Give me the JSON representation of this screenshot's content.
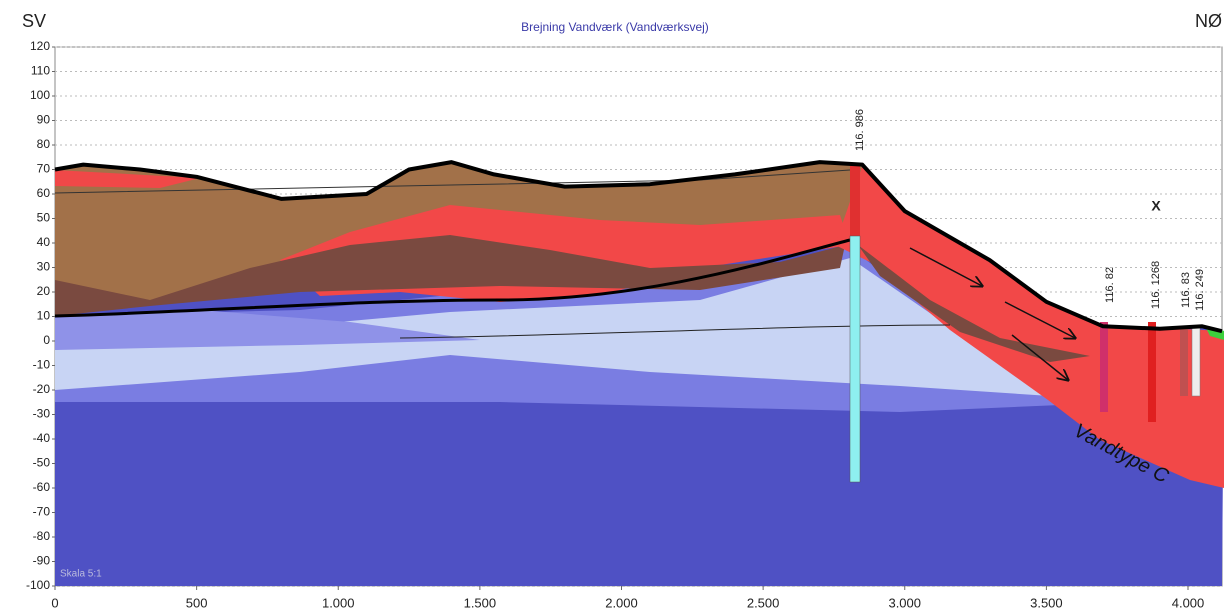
{
  "chart_data": {
    "type": "line",
    "title": "Brejning Vandværk (Vandværksvej)",
    "left_label": "SV",
    "right_label": "NØ",
    "annotations": [
      "Vandtype C",
      "X",
      "Skala 5:1",
      "116. 986",
      "116. 82",
      "116. 1268",
      "116. 83",
      "116. 249"
    ],
    "x": [
      0,
      100,
      300,
      500,
      800,
      1100,
      1250,
      1400,
      1550,
      1800,
      2100,
      2400,
      2700,
      2850,
      3000,
      3300,
      3500,
      3700,
      3900,
      4050,
      4120
    ],
    "values": [
      70,
      72,
      70,
      67,
      58,
      60,
      70,
      73,
      68,
      63,
      64,
      68,
      73,
      72,
      53,
      33,
      16,
      6,
      5,
      6,
      4
    ],
    "color": "#000000",
    "xlim": [
      0,
      4120
    ],
    "xticks": [
      0,
      500,
      {
        "value": 1000,
        "label": "1.000"
      },
      {
        "value": 1500,
        "label": "1.500"
      },
      {
        "value": 2000,
        "label": "2.000"
      },
      {
        "value": 2500,
        "label": "2.500"
      },
      {
        "value": 3000,
        "label": "3.000"
      },
      {
        "value": 3500,
        "label": "3.500"
      },
      {
        "value": 4000,
        "label": "4.000"
      }
    ],
    "ylim": [
      -100,
      120
    ],
    "yticks": [
      -100,
      -90,
      -80,
      -70,
      -60,
      -50,
      -40,
      -30,
      -20,
      -10,
      0,
      10,
      20,
      30,
      40,
      50,
      60,
      70,
      80,
      90,
      100,
      110,
      120
    ],
    "grid": true
  }
}
